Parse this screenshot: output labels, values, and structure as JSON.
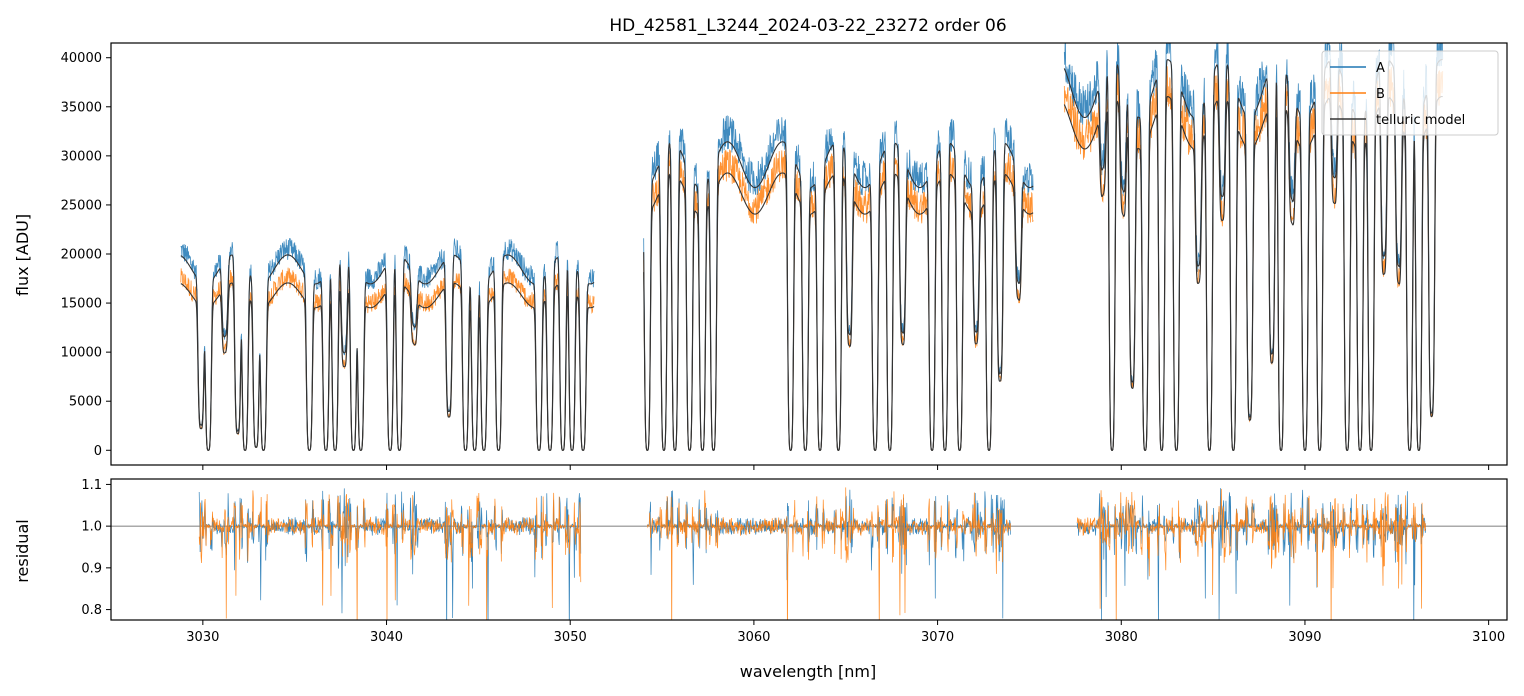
{
  "chart_data": [
    {
      "type": "line",
      "panel": "flux",
      "title": "HD_42581_L3244_2024-03-22_23272  order 06",
      "xlabel": "",
      "ylabel": "flux [ADU]",
      "xlim": [
        3025,
        3101
      ],
      "ylim": [
        -1500,
        41500
      ],
      "yticks": [
        0,
        5000,
        10000,
        15000,
        20000,
        25000,
        30000,
        35000,
        40000
      ],
      "ytick_labels": [
        "0",
        "5000",
        "10000",
        "15000",
        "20000",
        "25000",
        "30000",
        "35000",
        "40000"
      ],
      "xticks": [
        3030,
        3040,
        3050,
        3060,
        3070,
        3080,
        3090,
        3100
      ],
      "xtick_labels_shown": false,
      "legend": {
        "placement": "top-right",
        "entries": [
          "A",
          "B",
          "telluric model"
        ]
      },
      "series": [
        {
          "name": "A",
          "color": "#1f77b4",
          "description": "observed flux, nod A"
        },
        {
          "name": "B",
          "color": "#ff7f0e",
          "description": "observed flux, nod B"
        },
        {
          "name": "telluric model",
          "color": "#333333",
          "description": "telluric model fits"
        }
      ],
      "continuum_segments": [
        {
          "x": [
            3028.8,
            3051.3
          ],
          "level_A": 19000,
          "level_B": 17500
        },
        {
          "x": [
            3054.0,
            3075.2
          ],
          "level_A": 30000,
          "level_B": 29000
        },
        {
          "x": [
            3076.9,
            3097.5
          ],
          "level_A": 38000,
          "level_B": 37000
        }
      ],
      "absorption_lines": [
        {
          "x": 3029.9,
          "depth": 0.85
        },
        {
          "x": 3030.3,
          "depth": 1.0
        },
        {
          "x": 3031.2,
          "depth": 0.4
        },
        {
          "x": 3031.9,
          "depth": 0.9
        },
        {
          "x": 3032.3,
          "depth": 1.0
        },
        {
          "x": 3032.9,
          "depth": 0.98
        },
        {
          "x": 3033.3,
          "depth": 1.0
        },
        {
          "x": 3035.8,
          "depth": 1.0
        },
        {
          "x": 3036.7,
          "depth": 1.0
        },
        {
          "x": 3037.2,
          "depth": 1.0
        },
        {
          "x": 3037.7,
          "depth": 0.5
        },
        {
          "x": 3038.2,
          "depth": 1.0
        },
        {
          "x": 3038.6,
          "depth": 1.0
        },
        {
          "x": 3040.2,
          "depth": 1.0
        },
        {
          "x": 3040.7,
          "depth": 1.0
        },
        {
          "x": 3041.5,
          "depth": 0.3
        },
        {
          "x": 3043.4,
          "depth": 0.8
        },
        {
          "x": 3044.3,
          "depth": 1.0
        },
        {
          "x": 3044.8,
          "depth": 1.0
        },
        {
          "x": 3045.3,
          "depth": 1.0
        },
        {
          "x": 3046.1,
          "depth": 1.0
        },
        {
          "x": 3048.3,
          "depth": 1.0
        },
        {
          "x": 3048.9,
          "depth": 1.0
        },
        {
          "x": 3049.6,
          "depth": 1.0
        },
        {
          "x": 3050.1,
          "depth": 1.0
        },
        {
          "x": 3050.7,
          "depth": 1.0
        },
        {
          "x": 3054.2,
          "depth": 1.0
        },
        {
          "x": 3055.1,
          "depth": 1.0
        },
        {
          "x": 3055.7,
          "depth": 1.0
        },
        {
          "x": 3056.5,
          "depth": 1.0
        },
        {
          "x": 3057.2,
          "depth": 1.0
        },
        {
          "x": 3057.8,
          "depth": 1.0
        },
        {
          "x": 3062.0,
          "depth": 1.0
        },
        {
          "x": 3062.8,
          "depth": 1.0
        },
        {
          "x": 3063.6,
          "depth": 1.0
        },
        {
          "x": 3064.6,
          "depth": 1.0
        },
        {
          "x": 3065.2,
          "depth": 0.6
        },
        {
          "x": 3066.6,
          "depth": 1.0
        },
        {
          "x": 3067.4,
          "depth": 1.0
        },
        {
          "x": 3068.1,
          "depth": 0.6
        },
        {
          "x": 3069.7,
          "depth": 1.0
        },
        {
          "x": 3070.4,
          "depth": 1.0
        },
        {
          "x": 3071.2,
          "depth": 1.0
        },
        {
          "x": 3072.1,
          "depth": 0.55
        },
        {
          "x": 3072.8,
          "depth": 1.0
        },
        {
          "x": 3073.4,
          "depth": 0.75
        },
        {
          "x": 3074.4,
          "depth": 0.4
        },
        {
          "x": 3079.0,
          "depth": 0.25
        },
        {
          "x": 3079.5,
          "depth": 1.0
        },
        {
          "x": 3080.1,
          "depth": 0.3
        },
        {
          "x": 3080.6,
          "depth": 0.8
        },
        {
          "x": 3081.3,
          "depth": 1.0
        },
        {
          "x": 3082.2,
          "depth": 1.0
        },
        {
          "x": 3083.0,
          "depth": 1.0
        },
        {
          "x": 3084.2,
          "depth": 0.45
        },
        {
          "x": 3084.8,
          "depth": 1.0
        },
        {
          "x": 3085.5,
          "depth": 0.35
        },
        {
          "x": 3086.1,
          "depth": 1.0
        },
        {
          "x": 3087.0,
          "depth": 0.9
        },
        {
          "x": 3088.2,
          "depth": 0.75
        },
        {
          "x": 3088.7,
          "depth": 1.0
        },
        {
          "x": 3089.3,
          "depth": 0.3
        },
        {
          "x": 3090.0,
          "depth": 1.0
        },
        {
          "x": 3090.8,
          "depth": 1.0
        },
        {
          "x": 3091.6,
          "depth": 0.3
        },
        {
          "x": 3092.3,
          "depth": 1.0
        },
        {
          "x": 3093.0,
          "depth": 1.0
        },
        {
          "x": 3093.6,
          "depth": 1.0
        },
        {
          "x": 3094.3,
          "depth": 0.5
        },
        {
          "x": 3095.1,
          "depth": 0.5
        },
        {
          "x": 3095.7,
          "depth": 1.0
        },
        {
          "x": 3096.2,
          "depth": 1.0
        },
        {
          "x": 3096.9,
          "depth": 0.9
        }
      ]
    },
    {
      "type": "line",
      "panel": "residual",
      "xlabel": "wavelength [nm]",
      "ylabel": "residual",
      "xlim": [
        3025,
        3101
      ],
      "ylim": [
        0.775,
        1.113
      ],
      "yticks": [
        0.8,
        0.9,
        1.0,
        1.1
      ],
      "ytick_labels": [
        "0.8",
        "0.9",
        "1.0",
        "1.1"
      ],
      "xticks": [
        3030,
        3040,
        3050,
        3060,
        3070,
        3080,
        3090,
        3100
      ],
      "xtick_labels": [
        "3030",
        "3040",
        "3050",
        "3060",
        "3070",
        "3080",
        "3090",
        "3100"
      ],
      "reference_line": 1.0,
      "segments": [
        [
          3029.8,
          3050.6
        ],
        [
          3054.2,
          3074.0
        ],
        [
          3077.6,
          3096.6
        ]
      ],
      "series": [
        {
          "name": "A",
          "color": "#1f77b4"
        },
        {
          "name": "B",
          "color": "#ff7f0e"
        }
      ]
    }
  ]
}
